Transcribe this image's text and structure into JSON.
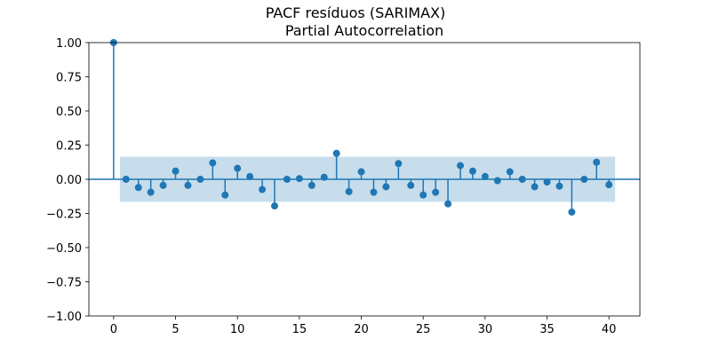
{
  "figure_title": "PACF resíduos (SARIMAX)",
  "chart_data": {
    "type": "stem",
    "title": "Partial Autocorrelation",
    "xlabel": "",
    "ylabel": "",
    "xlim": [
      -2,
      42.5
    ],
    "ylim": [
      -1.0,
      1.0
    ],
    "xticks": [
      0,
      5,
      10,
      15,
      20,
      25,
      30,
      35,
      40
    ],
    "yticks": [
      -1.0,
      -0.75,
      -0.5,
      -0.25,
      0.0,
      0.25,
      0.5,
      0.75,
      1.0
    ],
    "xtick_labels": [
      "0",
      "5",
      "10",
      "15",
      "20",
      "25",
      "30",
      "35",
      "40"
    ],
    "ytick_labels": [
      "−1.00",
      "−0.75",
      "−0.50",
      "−0.25",
      "0.00",
      "0.25",
      "0.50",
      "0.75",
      "1.00"
    ],
    "grid": false,
    "confidence_band": {
      "lower": -0.165,
      "upper": 0.165,
      "from_lag": 0.5,
      "to_lag": 40.5
    },
    "colors": {
      "stem": "#1f77b4",
      "band": "#1f77b4"
    },
    "x": [
      0,
      1,
      2,
      3,
      4,
      5,
      6,
      7,
      8,
      9,
      10,
      11,
      12,
      13,
      14,
      15,
      16,
      17,
      18,
      19,
      20,
      21,
      22,
      23,
      24,
      25,
      26,
      27,
      28,
      29,
      30,
      31,
      32,
      33,
      34,
      35,
      36,
      37,
      38,
      39,
      40
    ],
    "values": [
      1.0,
      0.0,
      -0.06,
      -0.095,
      -0.045,
      0.06,
      -0.045,
      0.0,
      0.12,
      -0.115,
      0.08,
      0.02,
      -0.075,
      -0.195,
      0.0,
      0.005,
      -0.045,
      0.015,
      0.19,
      -0.09,
      0.055,
      -0.095,
      -0.055,
      0.115,
      -0.045,
      -0.115,
      -0.095,
      -0.18,
      0.1,
      0.06,
      0.02,
      -0.01,
      0.055,
      0.0,
      -0.055,
      -0.02,
      -0.05,
      -0.24,
      0.0,
      0.125,
      -0.04
    ]
  }
}
